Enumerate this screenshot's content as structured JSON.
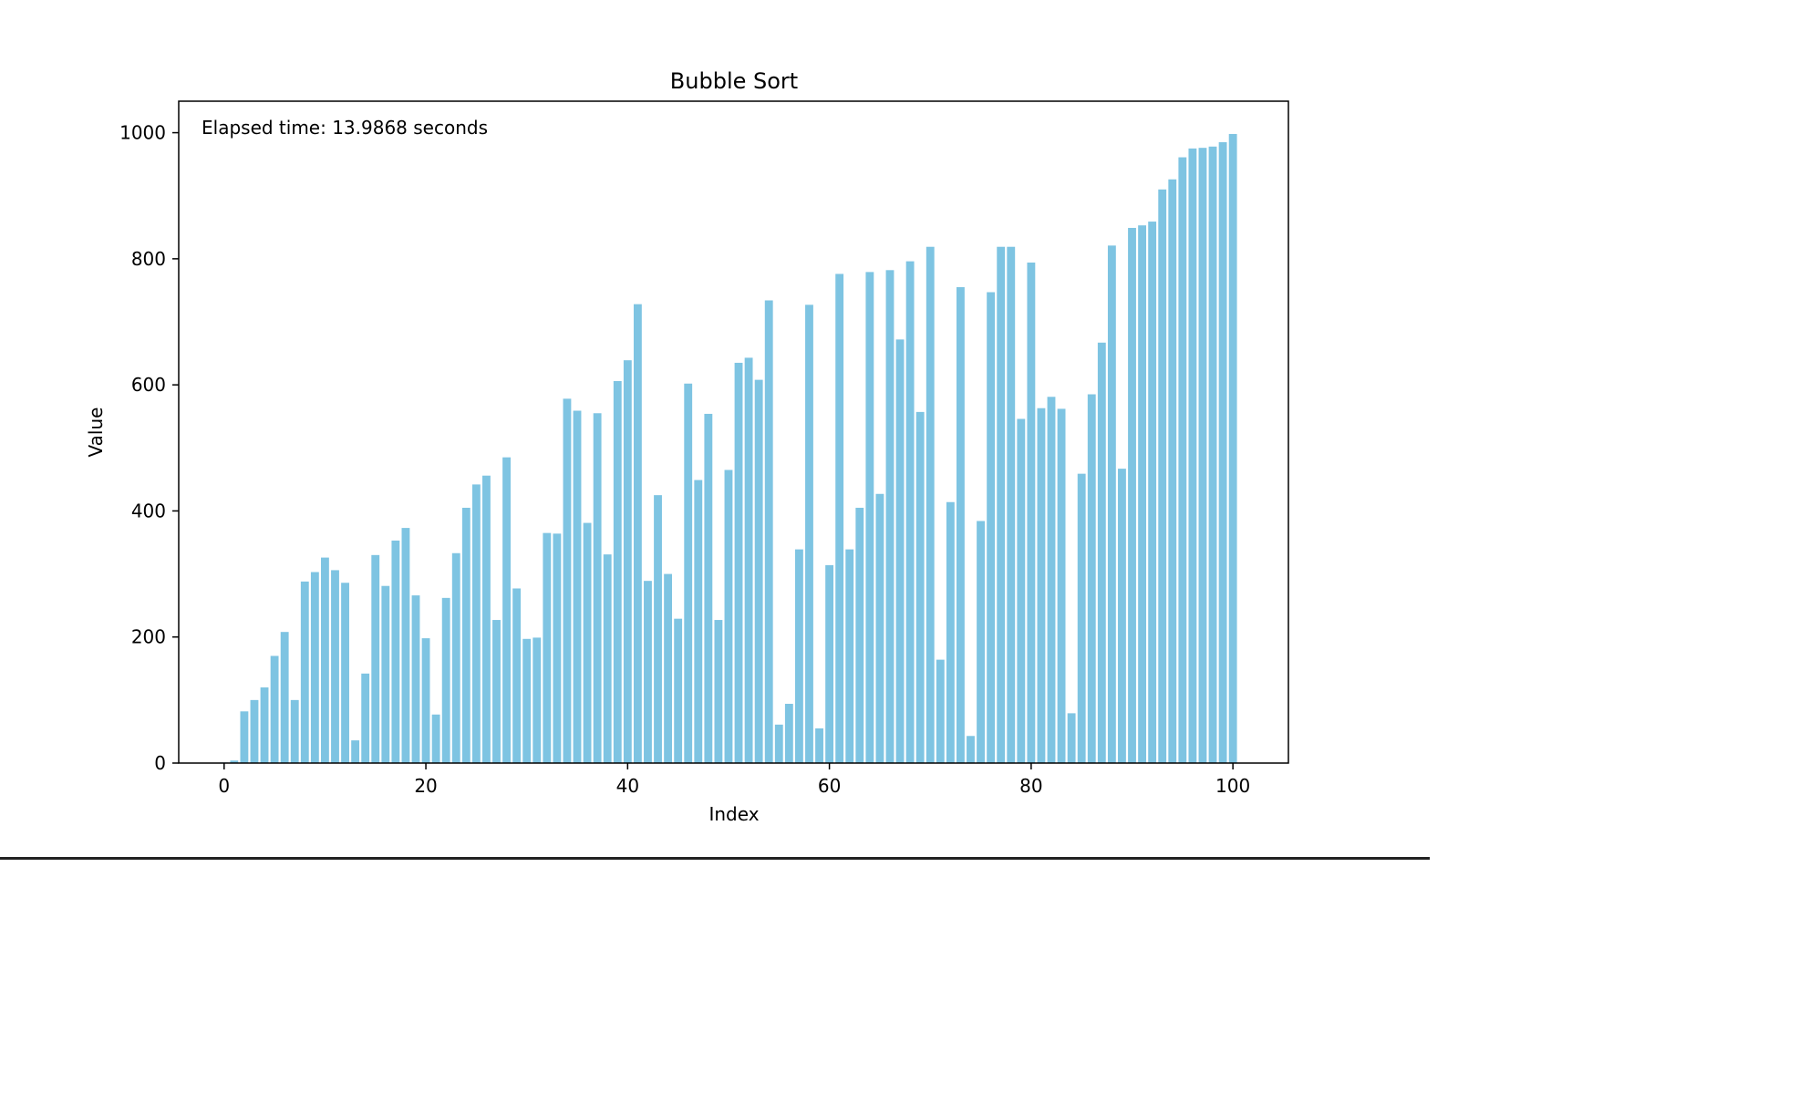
{
  "chart_data": {
    "type": "bar",
    "title": "Bubble Sort",
    "xlabel": "Index",
    "ylabel": "Value",
    "annotation": "Elapsed time: 13.9868 seconds",
    "bar_color": "#7ec4e2",
    "xlim": [
      -4.5,
      105.5
    ],
    "ylim": [
      0,
      1050
    ],
    "xticks": [
      0,
      20,
      40,
      60,
      80,
      100
    ],
    "yticks": [
      0,
      200,
      400,
      600,
      800,
      1000
    ],
    "grid": false,
    "x": [
      0,
      1,
      2,
      3,
      4,
      5,
      6,
      7,
      8,
      9,
      10,
      11,
      12,
      13,
      14,
      15,
      16,
      17,
      18,
      19,
      20,
      21,
      22,
      23,
      24,
      25,
      26,
      27,
      28,
      29,
      30,
      31,
      32,
      33,
      34,
      35,
      36,
      37,
      38,
      39,
      40,
      41,
      42,
      43,
      44,
      45,
      46,
      47,
      48,
      49,
      50,
      51,
      52,
      53,
      54,
      55,
      56,
      57,
      58,
      59,
      60,
      61,
      62,
      63,
      64,
      65,
      66,
      67,
      68,
      69,
      70,
      71,
      72,
      73,
      74,
      75,
      76,
      77,
      78,
      79,
      80,
      81,
      82,
      83,
      84,
      85,
      86,
      87,
      88,
      89,
      90,
      91,
      92,
      93,
      94,
      95,
      96,
      97,
      98,
      99,
      100
    ],
    "values": [
      1,
      4,
      82,
      100,
      120,
      170,
      208,
      100,
      288,
      303,
      326,
      306,
      286,
      36,
      142,
      330,
      281,
      353,
      373,
      266,
      198,
      77,
      262,
      333,
      405,
      442,
      456,
      227,
      485,
      277,
      197,
      199,
      365,
      364,
      578,
      559,
      381,
      555,
      331,
      606,
      639,
      728,
      289,
      425,
      300,
      229,
      602,
      449,
      554,
      227,
      465,
      635,
      643,
      608,
      734,
      61,
      94,
      339,
      727,
      55,
      314,
      776,
      339,
      405,
      779,
      427,
      782,
      672,
      796,
      557,
      819,
      164,
      414,
      755,
      43,
      384,
      747,
      819,
      819,
      546,
      794,
      563,
      581,
      562,
      79,
      459,
      585,
      667,
      821,
      467,
      849,
      853,
      859,
      910,
      926,
      961,
      975,
      976,
      978,
      985,
      998
    ]
  }
}
